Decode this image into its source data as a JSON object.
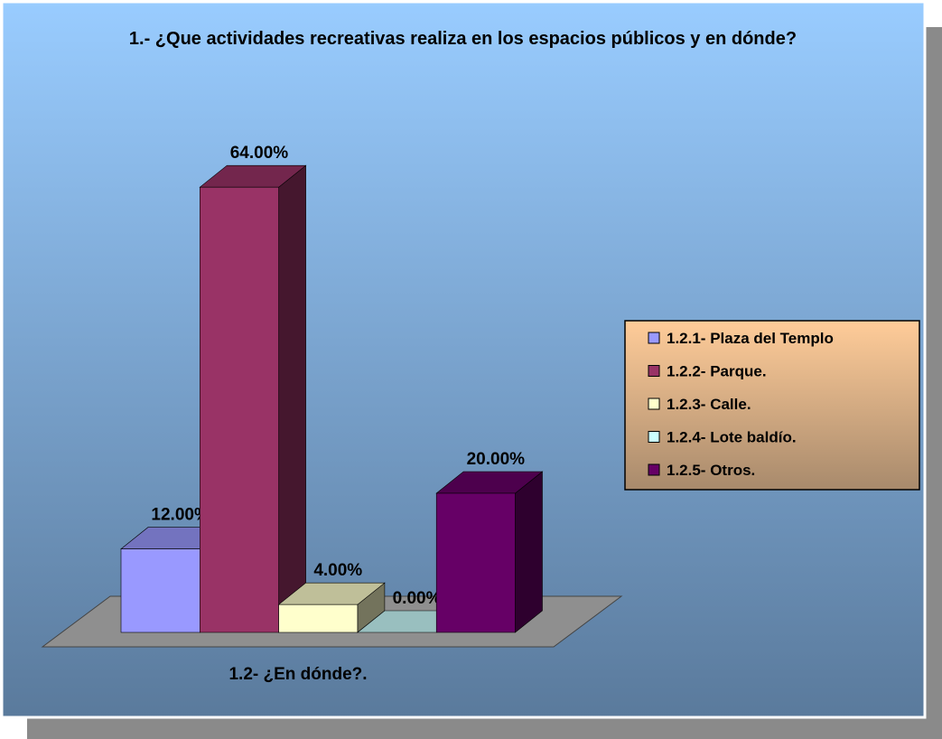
{
  "chart_data": {
    "type": "bar3d",
    "title": "1.- ¿Que actividades recreativas realiza en los espacios públicos y en dónde?",
    "xlabel": "1.2- ¿En dónde?.",
    "series": [
      {
        "name": "1.2.1- Plaza del Templo",
        "color": "#9999ff",
        "values": [
          12
        ],
        "value_labels": [
          "12.00%"
        ]
      },
      {
        "name": "1.2.2- Parque.",
        "color": "#993366",
        "values": [
          64
        ],
        "value_labels": [
          "64.00%"
        ]
      },
      {
        "name": "1.2.3- Calle.",
        "color": "#ffffcc",
        "values": [
          4
        ],
        "value_labels": [
          "4.00%"
        ]
      },
      {
        "name": "1.2.4- Lote baldío.",
        "color": "#ccffff",
        "values": [
          0
        ],
        "value_labels": [
          "0.00%"
        ]
      },
      {
        "name": "1.2.5- Otros.",
        "color": "#660066",
        "values": [
          20
        ],
        "value_labels": [
          "20.00%"
        ]
      }
    ],
    "legend": "right"
  }
}
